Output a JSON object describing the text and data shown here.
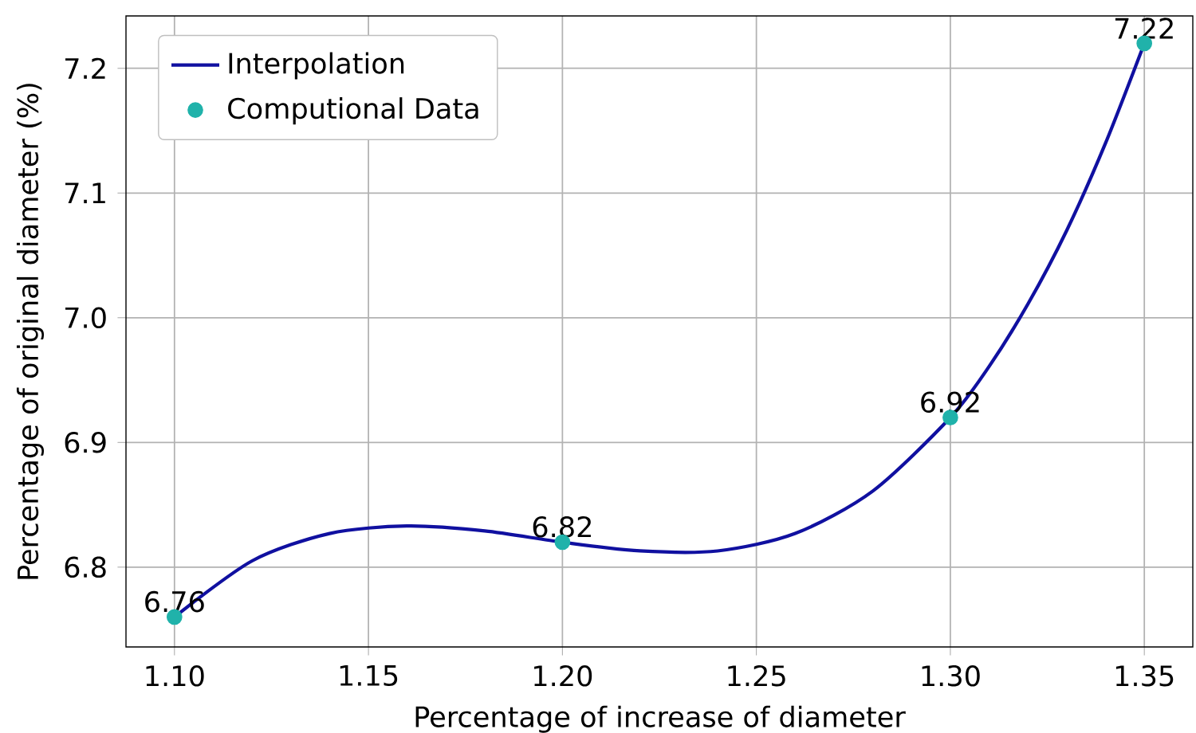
{
  "chart_data": {
    "type": "line",
    "xlabel": "Percentage of increase of diameter",
    "ylabel": "Percentage of original diameter (%)",
    "xlim": [
      1.0875,
      1.3625
    ],
    "ylim": [
      6.736,
      7.242
    ],
    "xticks": [
      {
        "value": 1.1,
        "label": "1.10"
      },
      {
        "value": 1.15,
        "label": "1.15"
      },
      {
        "value": 1.2,
        "label": "1.20"
      },
      {
        "value": 1.25,
        "label": "1.25"
      },
      {
        "value": 1.3,
        "label": "1.30"
      },
      {
        "value": 1.35,
        "label": "1.35"
      }
    ],
    "yticks": [
      6.8,
      6.9,
      {
        "value": 7.0,
        "label": "7.0"
      },
      7.1,
      7.2
    ],
    "grid": true,
    "legend": "top left",
    "series": [
      {
        "name": "Interpolation",
        "color": "#1010a0",
        "marker": "none",
        "x": [
          1.1,
          1.12,
          1.14,
          1.16,
          1.18,
          1.2,
          1.22,
          1.24,
          1.26,
          1.28,
          1.3,
          1.31,
          1.32,
          1.33,
          1.34,
          1.35
        ],
        "values": [
          6.76,
          6.805,
          6.827,
          6.833,
          6.829,
          6.82,
          6.813,
          6.813,
          6.827,
          6.861,
          6.92,
          6.961,
          7.011,
          7.07,
          7.14,
          7.22
        ]
      },
      {
        "name": "Computional Data",
        "type": "scatter",
        "color": "#20b2aa",
        "marker": "circle",
        "x": [
          1.1,
          1.2,
          1.3,
          1.35
        ],
        "values": [
          6.76,
          6.82,
          6.92,
          7.22
        ],
        "value_labels": [
          "6.76",
          "6.82",
          "6.92",
          "7.22"
        ]
      }
    ]
  }
}
